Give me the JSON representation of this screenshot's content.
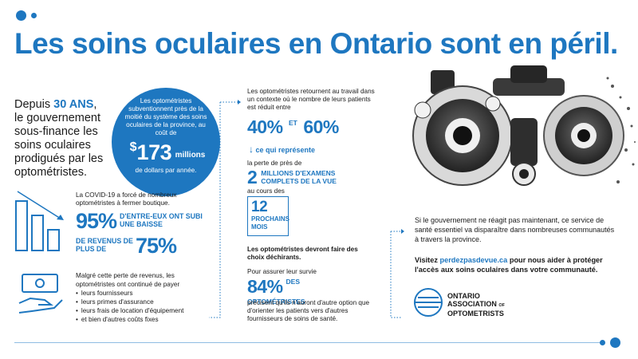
{
  "title": "Les soins oculaires en Ontario sont en péril.",
  "intro": {
    "prefix": "Depuis ",
    "highlight": "30 ANS",
    "suffix": ", le gouvernement sous-finance les soins oculaires prodigués par les optométristes."
  },
  "circle": {
    "text": "Les optométristes subventionnent près de la moitié du système des soins oculaires de la province, au coût de",
    "dollar": "$",
    "amount": "173",
    "unit": "millions",
    "sub": "de dollars par année."
  },
  "covid": {
    "text": "La COVID-19 a forcé de nombreux optométristes à fermer boutique.",
    "pct1": "95%",
    "label1": "D'ENTRE-EUX ONT SUBI UNE BAISSE",
    "label2": "DE REVENUS DE PLUS DE",
    "pct2": "75%"
  },
  "revenue": {
    "text": "Malgré cette perte de revenus, les optométristes ont continué de payer",
    "items": [
      "leurs fournisseurs",
      "leurs primes d'assurance",
      "leurs frais de location d'équipement",
      "et bien d'autres coûts fixes"
    ]
  },
  "middle": {
    "intro": "Les optométristes retournent au travail dans un contexte où le nombre de leurs patients est réduit entre",
    "pct_a": "40%",
    "et": "ET",
    "pct_b": "60%",
    "represents": "ce qui représente",
    "loss_prefix": "la perte de près de",
    "exams_num": "2",
    "exams_label": "MILLIONS D'EXAMENS COMPLETS DE LA VUE",
    "during": "au cours des",
    "months_num": "12",
    "months_label1": "PROCHAINS",
    "months_label2": "MOIS",
    "choices": "Les optométristes devront faire des choix déchirants.",
    "survival": "Pour assurer leur survie",
    "pct_c": "84%",
    "of_label": "DES OPTOMÉTRISTES",
    "outcome": "précisent qu'ils n'auront d'autre option que d'orienter les patients vers d'autres fournisseurs de soins de santé."
  },
  "right": {
    "warning": "Si le gouvernement ne réagit pas maintenant, ce service de santé essentiel va disparaître dans nombreuses communautés à travers la province.",
    "visit_prefix": "Visitez ",
    "link": "perdezpasdevue.ca",
    "visit_suffix": " pour nous aider à protéger l'accès aux soins oculaires dans votre communauté."
  },
  "logo": {
    "line1": "ONTARIO",
    "line2": "ASSOCIATION",
    "of": "OF",
    "line3": "OPTOMETRISTS"
  },
  "colors": {
    "accent": "#1e77c0",
    "light": "#8fbde3",
    "text": "#1a1a1a"
  }
}
